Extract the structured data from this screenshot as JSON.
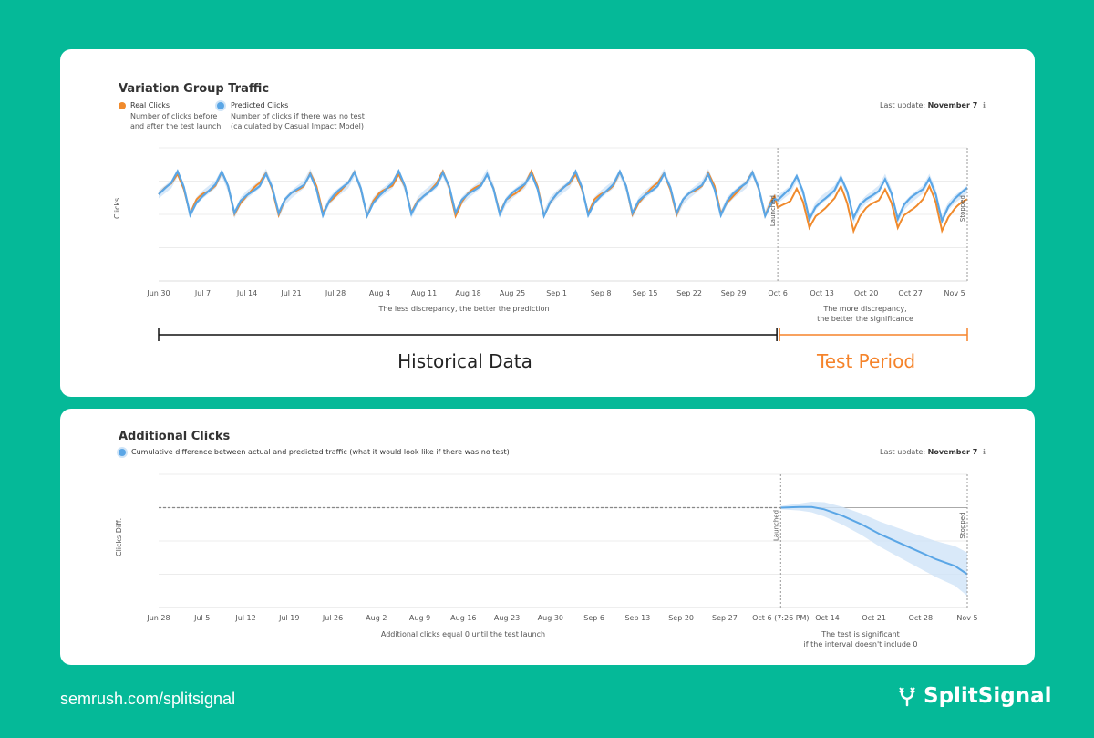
{
  "footer": {
    "url": "semrush.com/splitsignal",
    "brand": "SplitSignal"
  },
  "colors": {
    "real": "#f08a2c",
    "predicted": "#5aa6e6",
    "band": "#cfe4f7",
    "test": "#f5832a"
  },
  "card1": {
    "title": "Variation Group Traffic",
    "legend_real_title": "Real Clicks",
    "legend_real_desc1": "Number of clicks before",
    "legend_real_desc2": "and after the test launch",
    "legend_pred_title": "Predicted Clicks",
    "legend_pred_desc1": "Number of clicks if there was no test",
    "legend_pred_desc2": "(calculated by Casual Impact Model)",
    "last_update_label": "Last update:",
    "last_update_value": "November 7",
    "ylabel": "Clicks",
    "launched": "Launched",
    "stopped": "Stopped",
    "note_left": "The less discrepancy, the better the prediction",
    "note_right1": "The more discrepancy,",
    "note_right2": "the better the significance",
    "hist_label": "Historical Data",
    "test_label": "Test Period"
  },
  "card2": {
    "title": "Additional Clicks",
    "legend_desc": "Cumulative difference between actual and predicted traffic (what it would look like if there was no test)",
    "last_update_label": "Last update:",
    "last_update_value": "November 7",
    "ylabel": "Clicks Diff.",
    "launched": "Launched",
    "stopped": "Stopped",
    "note_left": "Additional clicks equal 0 until the test launch",
    "note_right1": "The test is significant",
    "note_right2": "if the interval doesn't include 0"
  },
  "chart_data": [
    {
      "type": "line",
      "title": "Variation Group Traffic",
      "ylabel": "Clicks",
      "x_ticks": [
        "Jun 30",
        "Jul 7",
        "Jul 14",
        "Jul 21",
        "Jul 28",
        "Aug 4",
        "Aug 11",
        "Aug 18",
        "Aug 25",
        "Sep 1",
        "Sep 8",
        "Sep 15",
        "Sep 22",
        "Sep 29",
        "Oct 6",
        "Oct 13",
        "Oct 20",
        "Oct 27",
        "Nov 5"
      ],
      "markers": [
        {
          "label": "Launched",
          "day": 98
        },
        {
          "label": "Stopped",
          "day": 128
        }
      ],
      "day_range": [
        0,
        128
      ],
      "weekly_shape": [
        0,
        0.15,
        0.3,
        0.65,
        0.2,
        -0.6,
        -0.2
      ],
      "series": [
        {
          "name": "Real Clicks",
          "baseline_pre": 0.2,
          "baseline_post": -0.25
        },
        {
          "name": "Predicted Clicks",
          "baseline_pre": 0.2,
          "baseline_post": 0.05
        }
      ],
      "grid": true
    },
    {
      "type": "line",
      "title": "Additional Clicks",
      "ylabel": "Clicks Diff.",
      "x_ticks": [
        "Jun 28",
        "Jul 5",
        "Jul 12",
        "Jul 19",
        "Jul 26",
        "Aug 2",
        "Aug 9",
        "Aug 16",
        "Aug 23",
        "Aug 30",
        "Sep 6",
        "Sep 13",
        "Sep 20",
        "Sep 27",
        "Oct 6 (7:26 PM)",
        "Oct 14",
        "Oct 21",
        "Oct 28",
        "Nov 5"
      ],
      "markers": [
        {
          "label": "Launched",
          "day": 100
        },
        {
          "label": "Stopped",
          "day": 130
        }
      ],
      "day_range": [
        0,
        130
      ],
      "series": [
        {
          "name": "Cumulative difference",
          "x": [
            100,
            103,
            105,
            107,
            110,
            113,
            116,
            119,
            122,
            125,
            128,
            130
          ],
          "y": [
            0,
            0.02,
            0.02,
            -0.05,
            -0.25,
            -0.5,
            -0.8,
            -1.05,
            -1.3,
            -1.55,
            -1.75,
            -2.0
          ]
        }
      ],
      "grid": true
    }
  ]
}
